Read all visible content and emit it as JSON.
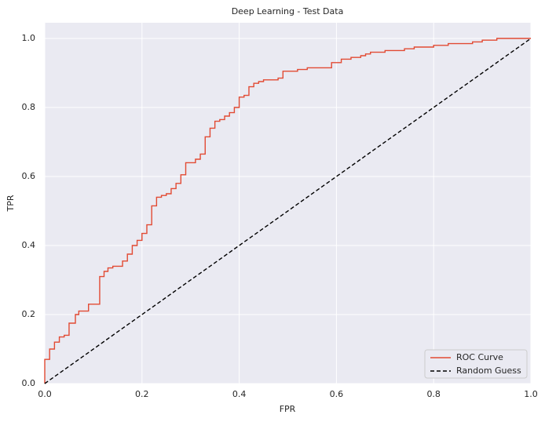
{
  "chart_data": {
    "type": "line",
    "title": "Deep Learning - Test Data",
    "x_label": "FPR",
    "y_label": "TPR",
    "xlim": [
      0,
      1
    ],
    "ylim": [
      0,
      1
    ],
    "xticks": [
      {
        "value": 0,
        "label": "0.0"
      },
      0.2,
      0.4,
      0.6,
      0.8,
      {
        "value": 1,
        "label": "1.0"
      }
    ],
    "yticks": [
      {
        "value": 0,
        "label": "0.0"
      },
      0.2,
      0.4,
      0.6,
      0.8,
      {
        "value": 1,
        "label": "1.0"
      }
    ],
    "grid": true,
    "legend": "lower right",
    "series": [
      {
        "name": "ROC Curve",
        "color": "#e24a33",
        "linestyle": "solid",
        "x": [
          0,
          0,
          0.01,
          0.01,
          0.02,
          0.02,
          0.03,
          0.03,
          0.04,
          0.04,
          0.05,
          0.05,
          0.063,
          0.063,
          0.07,
          0.07,
          0.09,
          0.09,
          0.113,
          0.113,
          0.122,
          0.122,
          0.13,
          0.13,
          0.14,
          0.14,
          0.16,
          0.16,
          0.17,
          0.17,
          0.18,
          0.18,
          0.19,
          0.19,
          0.2,
          0.2,
          0.21,
          0.21,
          0.22,
          0.22,
          0.23,
          0.23,
          0.24,
          0.24,
          0.25,
          0.25,
          0.26,
          0.26,
          0.27,
          0.27,
          0.28,
          0.28,
          0.29,
          0.29,
          0.31,
          0.31,
          0.32,
          0.32,
          0.33,
          0.33,
          0.34,
          0.34,
          0.35,
          0.35,
          0.36,
          0.36,
          0.37,
          0.37,
          0.38,
          0.38,
          0.39,
          0.39,
          0.4,
          0.4,
          0.41,
          0.41,
          0.42,
          0.42,
          0.43,
          0.43,
          0.44,
          0.44,
          0.45,
          0.45,
          0.48,
          0.48,
          0.49,
          0.49,
          0.52,
          0.52,
          0.54,
          0.54,
          0.59,
          0.59,
          0.61,
          0.61,
          0.63,
          0.63,
          0.65,
          0.65,
          0.66,
          0.66,
          0.67,
          0.67,
          0.7,
          0.7,
          0.74,
          0.74,
          0.76,
          0.76,
          0.8,
          0.8,
          0.83,
          0.83,
          0.88,
          0.88,
          0.9,
          0.9,
          0.93,
          0.93,
          1
        ],
        "y": [
          0,
          0.07,
          0.07,
          0.1,
          0.1,
          0.12,
          0.12,
          0.135,
          0.135,
          0.14,
          0.14,
          0.175,
          0.175,
          0.2,
          0.2,
          0.21,
          0.21,
          0.23,
          0.23,
          0.31,
          0.31,
          0.325,
          0.325,
          0.335,
          0.335,
          0.34,
          0.34,
          0.355,
          0.355,
          0.375,
          0.375,
          0.4,
          0.4,
          0.415,
          0.415,
          0.435,
          0.435,
          0.46,
          0.46,
          0.515,
          0.515,
          0.54,
          0.54,
          0.545,
          0.545,
          0.55,
          0.55,
          0.565,
          0.565,
          0.58,
          0.58,
          0.605,
          0.605,
          0.64,
          0.64,
          0.65,
          0.65,
          0.665,
          0.665,
          0.715,
          0.715,
          0.74,
          0.74,
          0.76,
          0.76,
          0.765,
          0.765,
          0.775,
          0.775,
          0.785,
          0.785,
          0.8,
          0.8,
          0.83,
          0.83,
          0.835,
          0.835,
          0.86,
          0.86,
          0.87,
          0.87,
          0.875,
          0.875,
          0.88,
          0.88,
          0.885,
          0.885,
          0.905,
          0.905,
          0.91,
          0.91,
          0.915,
          0.915,
          0.93,
          0.93,
          0.94,
          0.94,
          0.945,
          0.945,
          0.95,
          0.95,
          0.955,
          0.955,
          0.96,
          0.96,
          0.965,
          0.965,
          0.97,
          0.97,
          0.975,
          0.975,
          0.98,
          0.98,
          0.985,
          0.985,
          0.99,
          0.99,
          0.995,
          0.995,
          1,
          1
        ]
      },
      {
        "name": "Random Guess",
        "color": "#000000",
        "linestyle": "dashed",
        "x": [
          0,
          1
        ],
        "y": [
          0,
          1
        ]
      }
    ]
  }
}
